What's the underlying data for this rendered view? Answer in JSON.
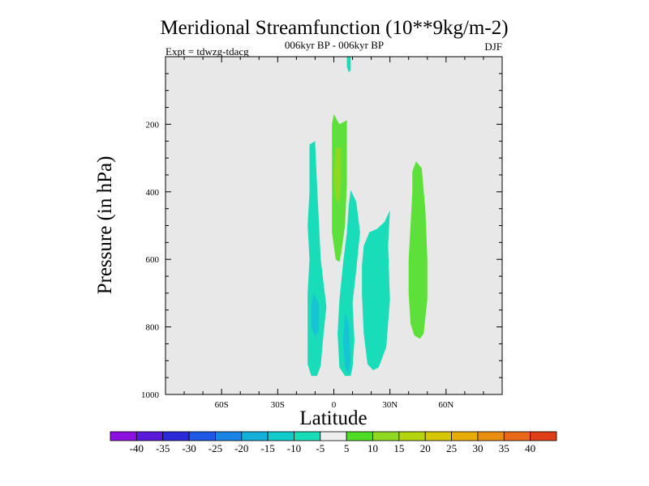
{
  "chart_data": {
    "type": "heatmap",
    "title": "Meridional Streamfunction (10**9kg/m-2)",
    "subtitle": "006kyr BP - 006kyr BP",
    "experiment_label": "Expt = tdwzg-tdacg",
    "season": "DJF",
    "xlabel": "Latitude",
    "ylabel": "Pressure (in hPa)",
    "xlim": [
      -90,
      90
    ],
    "ylim": [
      0,
      1000
    ],
    "y_inverted": true,
    "x_ticks": [
      {
        "value": -60,
        "label": "60S"
      },
      {
        "value": -30,
        "label": "30S"
      },
      {
        "value": 0,
        "label": "0"
      },
      {
        "value": 30,
        "label": "30N"
      },
      {
        "value": 60,
        "label": "60N"
      }
    ],
    "y_ticks": [
      {
        "value": 200,
        "label": "200"
      },
      {
        "value": 400,
        "label": "400"
      },
      {
        "value": 600,
        "label": "600"
      },
      {
        "value": 800,
        "label": "800"
      },
      {
        "value": 1000,
        "label": "1000"
      }
    ],
    "background_color": "#e8e8e8",
    "contour_regions": [
      {
        "name": "cell-12S",
        "level": "-10 to -5",
        "color": "#19dcb8",
        "outline": [
          [
            -13,
            260
          ],
          [
            -10,
            250
          ],
          [
            -9,
            380
          ],
          [
            -7,
            600
          ],
          [
            -4,
            740
          ],
          [
            -6,
            850
          ],
          [
            -7,
            915
          ],
          [
            -9,
            945
          ],
          [
            -12,
            945
          ],
          [
            -14,
            910
          ],
          [
            -14,
            820
          ],
          [
            -14,
            700
          ],
          [
            -13,
            600
          ],
          [
            -14,
            500
          ],
          [
            -13,
            400
          ],
          [
            -13,
            300
          ]
        ]
      },
      {
        "name": "cell-12S-core",
        "level": "-15 to -10",
        "color": "#17c4d4",
        "outline": [
          [
            -11,
            700
          ],
          [
            -8,
            730
          ],
          [
            -8,
            810
          ],
          [
            -10,
            830
          ],
          [
            -12,
            800
          ],
          [
            -12,
            740
          ]
        ]
      },
      {
        "name": "cell-5N",
        "level": "-10 to -5",
        "color": "#19dcb8",
        "outline": [
          [
            9,
            395
          ],
          [
            12,
            430
          ],
          [
            14,
            520
          ],
          [
            12,
            630
          ],
          [
            10,
            730
          ],
          [
            11,
            840
          ],
          [
            10,
            920
          ],
          [
            9,
            945
          ],
          [
            6,
            945
          ],
          [
            3,
            920
          ],
          [
            2,
            820
          ],
          [
            3,
            720
          ],
          [
            5,
            610
          ],
          [
            7,
            520
          ],
          [
            8,
            440
          ]
        ]
      },
      {
        "name": "cell-5N-core",
        "level": "-15 to -10",
        "color": "#17c4d4",
        "outline": [
          [
            6,
            760
          ],
          [
            8,
            790
          ],
          [
            9,
            900
          ],
          [
            8,
            940
          ],
          [
            6,
            920
          ],
          [
            5,
            840
          ]
        ]
      },
      {
        "name": "cell-25N",
        "level": "-10 to -5",
        "color": "#19dcb8",
        "outline": [
          [
            30,
            455
          ],
          [
            29,
            560
          ],
          [
            30,
            720
          ],
          [
            28,
            860
          ],
          [
            24,
            920
          ],
          [
            21,
            928
          ],
          [
            18,
            910
          ],
          [
            16,
            820
          ],
          [
            15,
            700
          ],
          [
            15,
            620
          ],
          [
            16,
            560
          ],
          [
            19,
            520
          ],
          [
            23,
            510
          ],
          [
            27,
            490
          ]
        ]
      },
      {
        "name": "cell-equator",
        "level": "5 to 10",
        "color": "#5ee03a",
        "outline": [
          [
            0,
            170
          ],
          [
            3,
            200
          ],
          [
            7,
            188
          ],
          [
            7,
            280
          ],
          [
            7,
            380
          ],
          [
            6,
            500
          ],
          [
            4,
            580
          ],
          [
            3,
            608
          ],
          [
            1,
            600
          ],
          [
            -1,
            520
          ],
          [
            -1,
            420
          ],
          [
            -1,
            340
          ],
          [
            -1,
            260
          ],
          [
            -1,
            200
          ]
        ]
      },
      {
        "name": "cell-equator-core",
        "level": "10 to 15",
        "color": "#8ed822",
        "outline": [
          [
            1,
            270
          ],
          [
            4,
            270
          ],
          [
            4,
            360
          ],
          [
            3,
            430
          ],
          [
            1,
            420
          ],
          [
            0,
            360
          ]
        ]
      },
      {
        "name": "cell-45N",
        "level": "5 to 10",
        "color": "#5ee03a",
        "outline": [
          [
            44,
            310
          ],
          [
            47,
            330
          ],
          [
            49,
            460
          ],
          [
            50,
            600
          ],
          [
            50,
            720
          ],
          [
            48,
            820
          ],
          [
            46,
            835
          ],
          [
            43,
            825
          ],
          [
            41,
            790
          ],
          [
            40,
            700
          ],
          [
            40,
            600
          ],
          [
            41,
            500
          ],
          [
            42,
            400
          ],
          [
            42,
            340
          ]
        ]
      },
      {
        "name": "top-wisp",
        "level": "-10 to -5",
        "color": "#19dcb8",
        "outline": [
          [
            7,
            0
          ],
          [
            9,
            0
          ],
          [
            9,
            40
          ],
          [
            8,
            46
          ],
          [
            7,
            30
          ]
        ]
      }
    ],
    "colorbar": {
      "levels": [
        -40,
        -35,
        -30,
        -25,
        -20,
        -15,
        -10,
        -5,
        5,
        10,
        15,
        20,
        25,
        30,
        35,
        40
      ],
      "labels": [
        "-40",
        "-35",
        "-30",
        "-25",
        "-20",
        "-15",
        "-10",
        "-5",
        "5",
        "10",
        "15",
        "20",
        "25",
        "30",
        "35",
        "40"
      ],
      "colors": [
        "#8c10e0",
        "#5a18d8",
        "#2a2ad8",
        "#1e58e6",
        "#1884e6",
        "#14aed8",
        "#12cccc",
        "#19dcb8",
        "#eeeeee",
        "#4edc24",
        "#8ed822",
        "#b4d40e",
        "#d6c606",
        "#e8ac08",
        "#e88e10",
        "#e86818",
        "#e03e16"
      ]
    }
  }
}
